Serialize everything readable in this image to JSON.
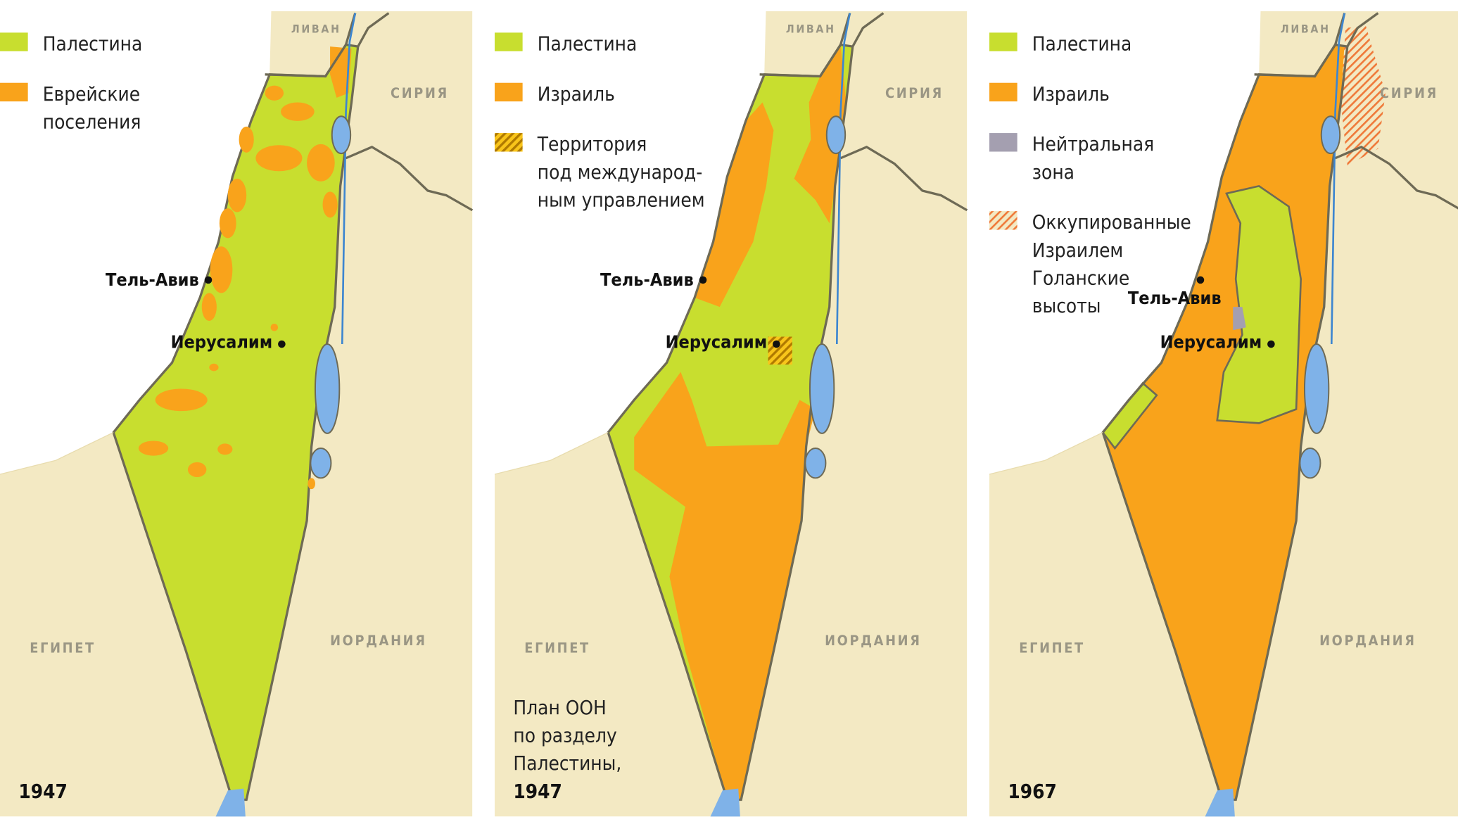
{
  "colors": {
    "palestine": "#c8de2f",
    "israel": "#f9a31b",
    "land": "#f3e9c3",
    "water": "#7fb2e8",
    "neutral": "#a49fb0",
    "border": "#6e6a55"
  },
  "countries": {
    "lebanon": "ЛИВАН",
    "syria": "СИРИЯ",
    "egypt": "ЕГИПЕТ",
    "jordan": "ИОРДАНИЯ"
  },
  "cities": {
    "tel_aviv": "Тель-Авив",
    "jerusalem": "Иерусалим"
  },
  "maps": [
    {
      "year": "1947",
      "legend": [
        {
          "label": [
            "Палестина"
          ],
          "swatch": "palestine"
        },
        {
          "label": [
            "Еврейские",
            "поселения"
          ],
          "swatch": "israel"
        }
      ]
    },
    {
      "year": "1947",
      "caption": [
        "План ООН",
        "по разделу",
        "Палестины,"
      ],
      "legend": [
        {
          "label": [
            "Палестина"
          ],
          "swatch": "palestine"
        },
        {
          "label": [
            "Израиль"
          ],
          "swatch": "israel"
        },
        {
          "label": [
            "Территория",
            "под международ-",
            "ным управлением"
          ],
          "swatch": "hatch-yellow"
        }
      ]
    },
    {
      "year": "1967",
      "legend": [
        {
          "label": [
            "Палестина"
          ],
          "swatch": "palestine"
        },
        {
          "label": [
            "Израиль"
          ],
          "swatch": "israel"
        },
        {
          "label": [
            "Нейтральная",
            "зона"
          ],
          "swatch": "neutral"
        },
        {
          "label": [
            "Оккупированные",
            "Израилем",
            "Голанские",
            "высоты"
          ],
          "swatch": "hatch-orange"
        }
      ]
    }
  ]
}
